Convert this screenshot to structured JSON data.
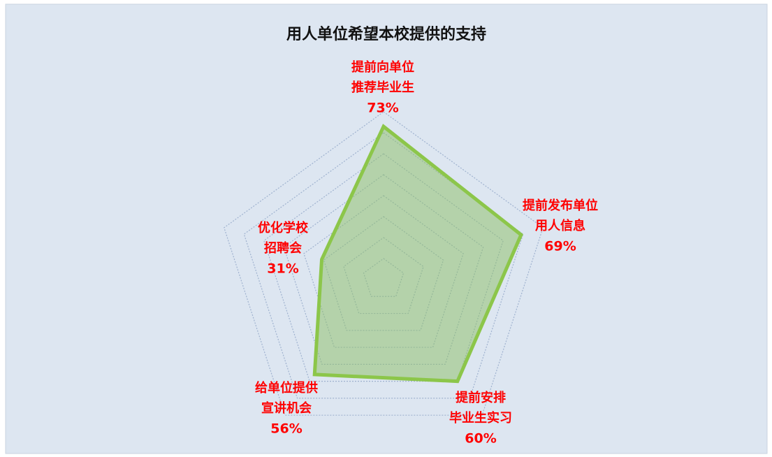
{
  "chart_data": {
    "type": "radar",
    "title": "用人单位希望本校提供的支持",
    "categories": [
      "提前向单位\n推荐毕业生",
      "提前发布单位\n用人信息",
      "提前安排\n毕业生实习",
      "给单位提供\n宣讲机会",
      "优化学校\n招聘会"
    ],
    "values": [
      73,
      69,
      60,
      56,
      31
    ],
    "value_labels": [
      "73%",
      "69%",
      "60%",
      "56%",
      "31%"
    ],
    "color": "#8cc64a",
    "label_color": "#ff0000",
    "ylim": [
      0,
      80
    ],
    "yticks": [
      0,
      10,
      20,
      30,
      40,
      50,
      60,
      70,
      80
    ],
    "grid": true
  }
}
